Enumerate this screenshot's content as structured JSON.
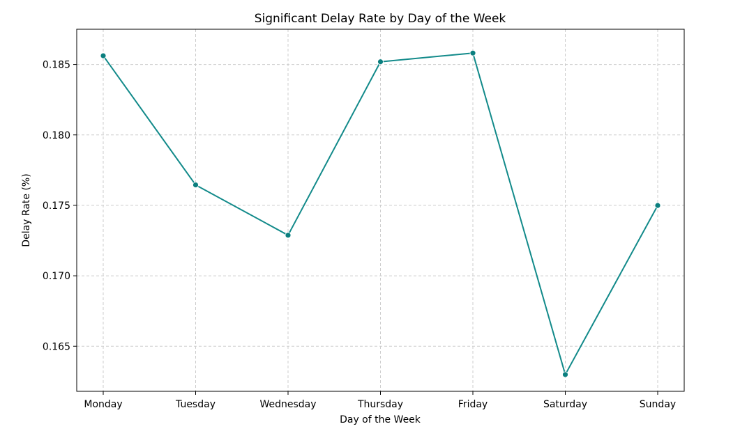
{
  "chart_data": {
    "type": "line",
    "title": "Significant Delay Rate by Day of the Week",
    "xlabel": "Day of the Week",
    "ylabel": "Delay Rate (%)",
    "categories": [
      "Monday",
      "Tuesday",
      "Wednesday",
      "Thursday",
      "Friday",
      "Saturday",
      "Sunday"
    ],
    "series": [
      {
        "values": [
          0.18562,
          0.17645,
          0.17288,
          0.18519,
          0.18581,
          0.16299,
          0.17499
        ]
      }
    ],
    "ylim": [
      0.1618,
      0.1875
    ],
    "yticks": [
      "0.165",
      "0.170",
      "0.175",
      "0.180",
      "0.185"
    ],
    "ytick_values": [
      0.165,
      0.17,
      0.175,
      0.18,
      0.185
    ],
    "grid": true,
    "line_color": "#128a8a",
    "marker_color": "#0b7f7f",
    "grid_color": "#cccccc"
  }
}
